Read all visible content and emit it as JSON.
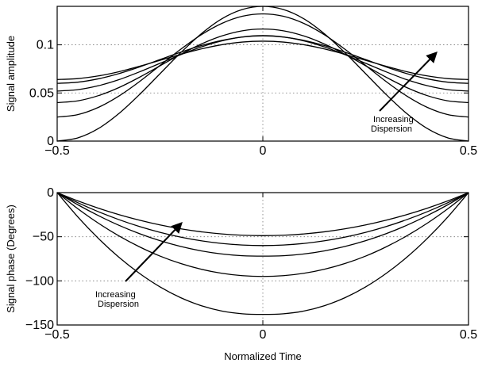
{
  "chart_data": [
    {
      "type": "line",
      "title": "",
      "xlabel": "",
      "ylabel": "Signal amplitude",
      "xlim": [
        -0.5,
        0.5
      ],
      "ylim": [
        0,
        0.14
      ],
      "xticks": [
        -0.5,
        0,
        0.5
      ],
      "xtick_labels": [
        "−0.5",
        "0",
        "0.5"
      ],
      "yticks": [
        0,
        0.05,
        0.1
      ],
      "ytick_labels": [
        "0",
        "0.05",
        "0.1"
      ],
      "grid": true,
      "annotation": {
        "lines": [
          "Increasing",
          "Dispersion"
        ],
        "arrow": "up-right"
      },
      "series": [
        {
          "x": [
            -0.5,
            -0.45,
            -0.4,
            -0.35,
            -0.3,
            -0.25,
            -0.2,
            -0.15,
            -0.1,
            -0.05,
            0,
            0.05,
            0.1,
            0.15,
            0.2,
            0.25,
            0.3,
            0.35,
            0.4,
            0.45,
            0.5
          ],
          "values": [
            0,
            0.0033,
            0.013,
            0.0286,
            0.0483,
            0.07,
            0.0917,
            0.1114,
            0.127,
            0.1367,
            0.14,
            0.1367,
            0.127,
            0.1114,
            0.0917,
            0.07,
            0.0483,
            0.0286,
            0.013,
            0.0033,
            0
          ]
        },
        {
          "x": [
            -0.5,
            -0.45,
            -0.4,
            -0.35,
            -0.3,
            -0.25,
            -0.2,
            -0.15,
            -0.1,
            -0.05,
            0,
            0.05,
            0.1,
            0.15,
            0.2,
            0.25,
            0.3,
            0.35,
            0.4,
            0.45,
            0.5
          ],
          "values": [
            0.025,
            0.0275,
            0.035,
            0.0468,
            0.0618,
            0.0786,
            0.0953,
            0.1104,
            0.1222,
            0.1297,
            0.1322,
            0.1297,
            0.1222,
            0.1104,
            0.0953,
            0.0786,
            0.0618,
            0.0468,
            0.035,
            0.0275,
            0.025
          ]
        },
        {
          "x": [
            -0.5,
            -0.45,
            -0.4,
            -0.35,
            -0.3,
            -0.25,
            -0.2,
            -0.15,
            -0.1,
            -0.05,
            0,
            0.05,
            0.1,
            0.15,
            0.2,
            0.25,
            0.3,
            0.35,
            0.4,
            0.45,
            0.5
          ],
          "values": [
            0.04,
            0.0418,
            0.0472,
            0.0556,
            0.0663,
            0.0782,
            0.0901,
            0.1008,
            0.1092,
            0.1146,
            0.1164,
            0.1146,
            0.1092,
            0.1008,
            0.0901,
            0.0782,
            0.0663,
            0.0556,
            0.0472,
            0.0418,
            0.04
          ]
        },
        {
          "x": [
            -0.5,
            -0.45,
            -0.4,
            -0.35,
            -0.3,
            -0.25,
            -0.2,
            -0.15,
            -0.1,
            -0.05,
            0,
            0.05,
            0.1,
            0.15,
            0.2,
            0.25,
            0.3,
            0.35,
            0.4,
            0.45,
            0.5
          ],
          "values": [
            0.052,
            0.0534,
            0.0575,
            0.0638,
            0.0719,
            0.0808,
            0.0897,
            0.0978,
            0.1041,
            0.1082,
            0.1096,
            0.1082,
            0.1041,
            0.0978,
            0.0897,
            0.0808,
            0.0719,
            0.0638,
            0.0575,
            0.0534,
            0.052
          ]
        },
        {
          "x": [
            -0.5,
            -0.45,
            -0.4,
            -0.35,
            -0.3,
            -0.25,
            -0.2,
            -0.15,
            -0.1,
            -0.05,
            0,
            0.05,
            0.1,
            0.15,
            0.2,
            0.25,
            0.3,
            0.35,
            0.4,
            0.45,
            0.5
          ],
          "values": [
            0.06,
            0.0612,
            0.0647,
            0.0701,
            0.077,
            0.0847,
            0.0923,
            0.0992,
            0.1046,
            0.1081,
            0.1093,
            0.1081,
            0.1046,
            0.0992,
            0.0923,
            0.0847,
            0.077,
            0.0701,
            0.0647,
            0.0612,
            0.06
          ]
        },
        {
          "x": [
            -0.5,
            -0.45,
            -0.4,
            -0.35,
            -0.3,
            -0.25,
            -0.2,
            -0.15,
            -0.1,
            -0.05,
            0,
            0.05,
            0.1,
            0.15,
            0.2,
            0.25,
            0.3,
            0.35,
            0.4,
            0.45,
            0.5
          ],
          "values": [
            0.064,
            0.0649,
            0.0677,
            0.0721,
            0.0777,
            0.0839,
            0.0901,
            0.0957,
            0.1001,
            0.1029,
            0.1038,
            0.1029,
            0.1001,
            0.0957,
            0.0901,
            0.0839,
            0.0777,
            0.0721,
            0.0677,
            0.0649,
            0.064
          ]
        }
      ]
    },
    {
      "type": "line",
      "title": "",
      "xlabel": "Normalized Time",
      "ylabel": "Signal phase (Degrees)",
      "xlim": [
        -0.5,
        0.5
      ],
      "ylim": [
        -150,
        0
      ],
      "xticks": [
        -0.5,
        0,
        0.5
      ],
      "xtick_labels": [
        "−0.5",
        "0",
        "0.5"
      ],
      "yticks": [
        0,
        -50,
        -100,
        -150
      ],
      "ytick_labels": [
        "0",
        "−50",
        "−100",
        "−150"
      ],
      "grid": true,
      "annotation": {
        "lines": [
          "Increasing",
          "Dispersion"
        ],
        "arrow": "up-right"
      },
      "series": [
        {
          "x": [
            -0.5,
            -0.45,
            -0.4,
            -0.35,
            -0.3,
            -0.25,
            -0.2,
            -0.15,
            -0.1,
            -0.05,
            0,
            0.05,
            0.1,
            0.15,
            0.2,
            0.25,
            0.3,
            0.35,
            0.4,
            0.45,
            0.5
          ],
          "values": [
            0,
            -27.4,
            -51.8,
            -73.2,
            -91.5,
            -106.8,
            -119.0,
            -128.1,
            -134.2,
            -137.3,
            -138.0,
            -137.3,
            -134.2,
            -128.1,
            -119.0,
            -106.8,
            -91.5,
            -73.2,
            -51.8,
            -27.4,
            0
          ]
        },
        {
          "x": [
            -0.5,
            -0.45,
            -0.4,
            -0.35,
            -0.3,
            -0.25,
            -0.2,
            -0.15,
            -0.1,
            -0.05,
            0,
            0.05,
            0.1,
            0.15,
            0.2,
            0.25,
            0.3,
            0.35,
            0.4,
            0.45,
            0.5
          ],
          "values": [
            0,
            -18.2,
            -34.6,
            -49.0,
            -61.4,
            -71.9,
            -80.3,
            -86.8,
            -91.4,
            -94.1,
            -95.0,
            -94.1,
            -91.4,
            -86.8,
            -80.3,
            -71.9,
            -61.4,
            -49.0,
            -34.6,
            -18.2,
            0
          ]
        },
        {
          "x": [
            -0.5,
            -0.45,
            -0.4,
            -0.35,
            -0.3,
            -0.25,
            -0.2,
            -0.15,
            -0.1,
            -0.05,
            0,
            0.05,
            0.1,
            0.15,
            0.2,
            0.25,
            0.3,
            0.35,
            0.4,
            0.45,
            0.5
          ],
          "values": [
            0,
            -13.7,
            -26.0,
            -37.0,
            -46.5,
            -54.5,
            -61.0,
            -66.0,
            -69.5,
            -71.5,
            -72.0,
            -71.5,
            -69.5,
            -66.0,
            -61.0,
            -54.5,
            -46.5,
            -37.0,
            -26.0,
            -13.7,
            0
          ]
        },
        {
          "x": [
            -0.5,
            -0.45,
            -0.4,
            -0.35,
            -0.3,
            -0.25,
            -0.2,
            -0.15,
            -0.1,
            -0.05,
            0,
            0.05,
            0.1,
            0.15,
            0.2,
            0.25,
            0.3,
            0.35,
            0.4,
            0.45,
            0.5
          ],
          "values": [
            0,
            -11.4,
            -21.6,
            -30.6,
            -38.4,
            -45.0,
            -50.4,
            -54.6,
            -57.6,
            -59.4,
            -60.0,
            -59.4,
            -57.6,
            -54.6,
            -50.4,
            -45.0,
            -38.4,
            -30.6,
            -21.6,
            -11.4,
            0
          ]
        },
        {
          "x": [
            -0.5,
            -0.45,
            -0.4,
            -0.35,
            -0.3,
            -0.25,
            -0.2,
            -0.15,
            -0.1,
            -0.05,
            0,
            0.05,
            0.1,
            0.15,
            0.2,
            0.25,
            0.3,
            0.35,
            0.4,
            0.45,
            0.5
          ],
          "values": [
            0,
            -9.3,
            -17.6,
            -24.9,
            -31.2,
            -36.6,
            -41.0,
            -44.4,
            -46.8,
            -48.3,
            -48.8,
            -48.3,
            -46.8,
            -44.4,
            -41.0,
            -36.6,
            -31.2,
            -24.9,
            -17.6,
            -9.3,
            0
          ]
        }
      ]
    }
  ]
}
